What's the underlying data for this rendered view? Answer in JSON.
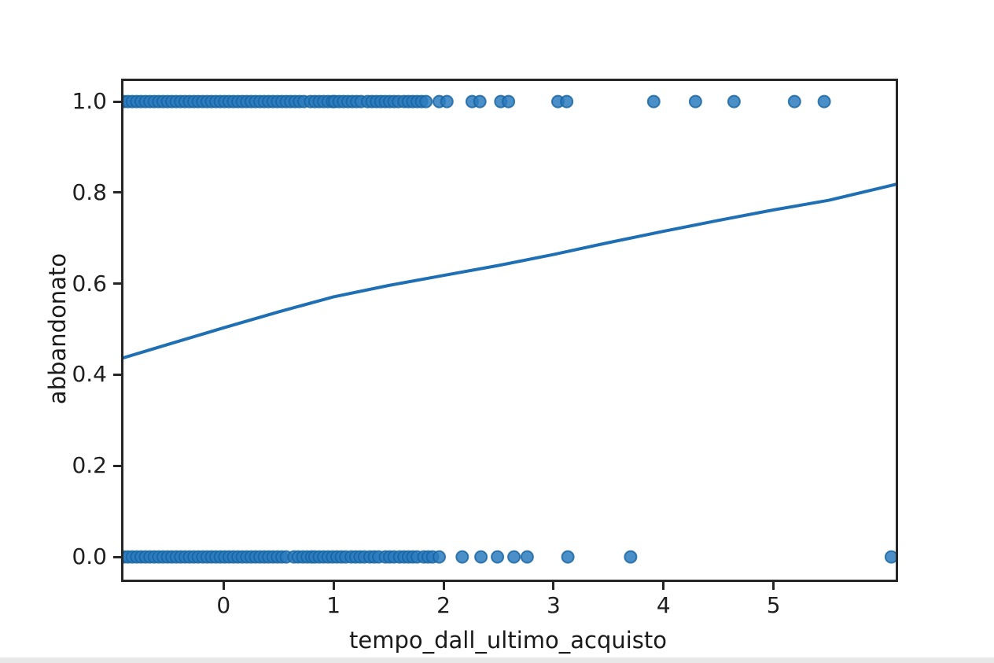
{
  "chart_data": {
    "type": "scatter",
    "title": "",
    "xlabel": "tempo_dall_ultimo_acquisto",
    "ylabel": "abbandonato",
    "xlim": [
      -0.91,
      6.11
    ],
    "ylim": [
      -0.05,
      1.045
    ],
    "xticks": [
      0,
      1,
      2,
      3,
      4,
      5
    ],
    "xtick_labels": [
      "0",
      "1",
      "2",
      "3",
      "4",
      "5"
    ],
    "yticks": [
      0.0,
      0.2,
      0.4,
      0.6,
      0.8,
      1.0
    ],
    "ytick_labels": [
      "0.0",
      "0.2",
      "0.4",
      "0.6",
      "0.8",
      "1.0"
    ],
    "grid": false,
    "legend": null,
    "point_color": "#2b7bbe",
    "point_edge_color": "#15639f",
    "line_color": "#1f6fb4",
    "spine_color": "#262626",
    "tick_color": "#262626",
    "text_color": "#1f1f1f",
    "point_radius_px": 7.5,
    "dense_step": 0.04,
    "series": [
      {
        "name": "abbandonato = 1",
        "y": 1.0,
        "dense_ranges": [
          [
            -0.91,
            0.76
          ],
          [
            0.79,
            0.99
          ],
          [
            1.01,
            1.26
          ],
          [
            1.31,
            1.61
          ],
          [
            1.64,
            1.85
          ]
        ],
        "points": [
          1.96,
          2.03,
          2.26,
          2.33,
          2.52,
          2.59,
          3.04,
          3.12,
          3.91,
          4.29,
          4.64,
          5.19,
          5.46
        ]
      },
      {
        "name": "abbandonato = 0",
        "y": 0.0,
        "dense_ranges": [
          [
            -0.91,
            0.6
          ],
          [
            0.64,
            0.8
          ],
          [
            0.83,
            1.12
          ],
          [
            1.16,
            1.3
          ],
          [
            1.33,
            1.43
          ],
          [
            1.47,
            1.56
          ],
          [
            1.6,
            1.78
          ],
          [
            1.82,
            1.9
          ]
        ],
        "points": [
          1.96,
          2.17,
          2.34,
          2.49,
          2.64,
          2.76,
          3.13,
          3.7,
          6.07
        ]
      }
    ],
    "regression_line": {
      "points": [
        [
          -0.91,
          0.437
        ],
        [
          -0.5,
          0.467
        ],
        [
          0,
          0.503
        ],
        [
          0.5,
          0.538
        ],
        [
          1,
          0.571
        ],
        [
          1.5,
          0.596
        ],
        [
          2,
          0.618
        ],
        [
          2.5,
          0.64
        ],
        [
          3,
          0.664
        ],
        [
          3.5,
          0.69
        ],
        [
          4,
          0.715
        ],
        [
          4.5,
          0.739
        ],
        [
          5,
          0.762
        ],
        [
          5.5,
          0.783
        ],
        [
          6.11,
          0.818
        ]
      ]
    }
  }
}
